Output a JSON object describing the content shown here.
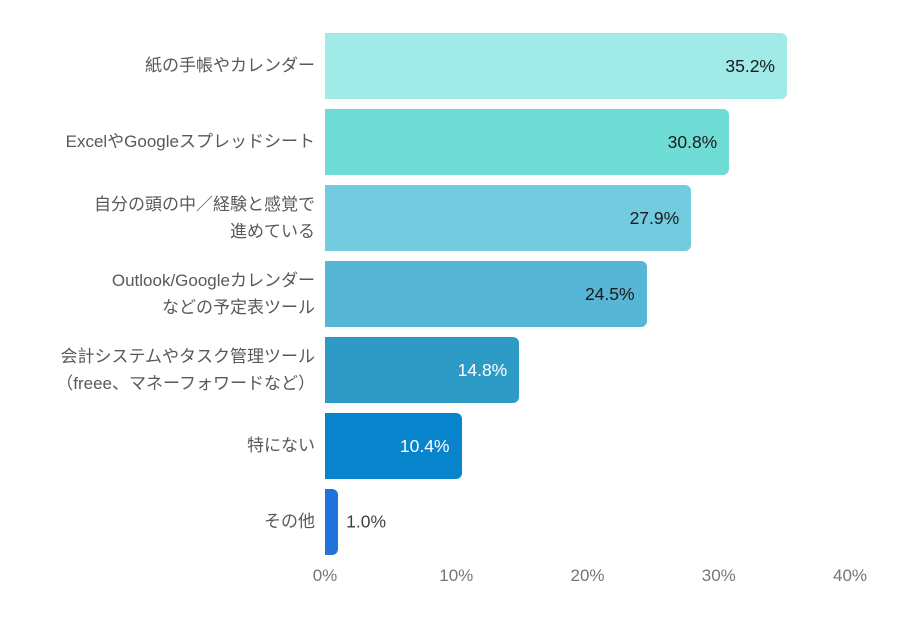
{
  "chart_data": {
    "type": "bar",
    "orientation": "horizontal",
    "title": "",
    "xlabel": "",
    "ylabel": "",
    "background_color": "#ffffff",
    "grid": false,
    "legend": false,
    "xlim": [
      0,
      40
    ],
    "x_ticks": [
      "0%",
      "10%",
      "20%",
      "30%",
      "40%"
    ],
    "categories": [
      "紙の手帳やカレンダー",
      "ExcelやGoogleスプレッドシート",
      "自分の頭の中／経験と感覚で\n進めている",
      "Outlook/Googleカレンダー\nなどの予定表ツール",
      "会計システムやタスク管理ツール\n（freee、マネーフォワードなど）",
      "特にない",
      "その他"
    ],
    "values": [
      35.2,
      30.8,
      27.9,
      24.5,
      14.8,
      10.4,
      1.0
    ],
    "value_labels": [
      "35.2%",
      "30.8%",
      "27.9%",
      "24.5%",
      "14.8%",
      "10.4%",
      "1.0%"
    ],
    "bar_colors": [
      "#a0eae8",
      "#6fddd6",
      "#72cbde",
      "#57b5d6",
      "#2e9bc6",
      "#0884cc",
      "#2173db"
    ],
    "value_label_colors": [
      "#1a1a1a",
      "#1a1a1a",
      "#1a1a1a",
      "#1a1a1a",
      "#ffffff",
      "#ffffff",
      "#404040"
    ],
    "value_label_placement": [
      "inside",
      "inside",
      "inside",
      "inside",
      "inside",
      "inside",
      "outside"
    ],
    "category_label_color": "#595959",
    "axis_label_color": "#757575"
  }
}
